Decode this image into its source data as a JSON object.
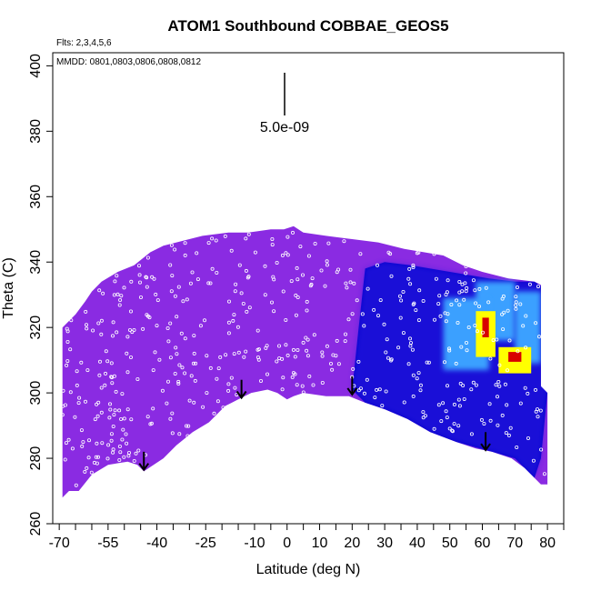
{
  "chart_data": {
    "type": "heatmap",
    "title": "ATOM1 Southbound COBBAE_GEOS5",
    "flights_note": "Flts: 2,3,4,5,6",
    "dates_note": "MMDD: 0801,0803,0806,0808,0812",
    "scale_label": "5.0e-09",
    "xlabel": "Latitude (deg N)",
    "ylabel": "Theta (C)",
    "xlim": [
      -72,
      85
    ],
    "ylim": [
      260,
      404
    ],
    "x_ticks": [
      -70,
      -65,
      -60,
      -55,
      -50,
      -45,
      -40,
      -35,
      -30,
      -25,
      -20,
      -15,
      -10,
      -5,
      0,
      5,
      10,
      15,
      20,
      25,
      30,
      35,
      40,
      45,
      50,
      55,
      60,
      65,
      70,
      75,
      80,
      85
    ],
    "x_tick_labels": [
      "-70",
      "-55",
      "-40",
      "-25",
      "-10",
      "0",
      "10",
      "20",
      "30",
      "40",
      "50",
      "60",
      "70",
      "80"
    ],
    "y_ticks": [
      260,
      280,
      300,
      320,
      340,
      360,
      380,
      400
    ],
    "y_tick_labels": [
      "260",
      "280",
      "300",
      "320",
      "340",
      "360",
      "380",
      "400"
    ],
    "colors": {
      "background_field": "#8a2be2",
      "low": "#0000cd",
      "mid": "#3aa0ff",
      "high": "#ffff00",
      "peak": "#d80000",
      "points": "#ffffff"
    },
    "arrows_lat": [
      -44,
      -14,
      20,
      61
    ],
    "top_boundary": [
      [
        -69,
        320
      ],
      [
        -65,
        324
      ],
      [
        -62,
        328
      ],
      [
        -60,
        331
      ],
      [
        -57,
        334
      ],
      [
        -52,
        337
      ],
      [
        -47,
        339
      ],
      [
        -42,
        343
      ],
      [
        -38,
        345
      ],
      [
        -34,
        346
      ],
      [
        -30,
        347
      ],
      [
        -26,
        348
      ],
      [
        -18,
        349
      ],
      [
        -12,
        349
      ],
      [
        -5,
        350
      ],
      [
        -1,
        350
      ],
      [
        2,
        351
      ],
      [
        5,
        349
      ],
      [
        12,
        348
      ],
      [
        20,
        347
      ],
      [
        28,
        346
      ],
      [
        36,
        344
      ],
      [
        42,
        343
      ],
      [
        48,
        342
      ],
      [
        54,
        339
      ],
      [
        60,
        337
      ],
      [
        68,
        335
      ],
      [
        76,
        334
      ],
      [
        78,
        333
      ]
    ],
    "bottom_boundary": [
      [
        -69,
        268
      ],
      [
        -67,
        270
      ],
      [
        -64,
        270
      ],
      [
        -60,
        275
      ],
      [
        -55,
        278
      ],
      [
        -49,
        279
      ],
      [
        -46,
        278
      ],
      [
        -44,
        276
      ],
      [
        -38,
        280
      ],
      [
        -34,
        284
      ],
      [
        -29,
        288
      ],
      [
        -24,
        291
      ],
      [
        -19,
        296
      ],
      [
        -15,
        298
      ],
      [
        -11,
        300
      ],
      [
        -6,
        301
      ],
      [
        -3,
        300
      ],
      [
        0,
        298
      ],
      [
        2,
        299
      ],
      [
        5,
        300
      ],
      [
        12,
        299
      ],
      [
        19,
        299
      ],
      [
        24,
        297
      ],
      [
        30,
        295
      ],
      [
        37,
        292
      ],
      [
        44,
        288
      ],
      [
        52,
        285
      ],
      [
        58,
        283
      ],
      [
        63,
        282
      ],
      [
        69,
        280
      ],
      [
        73,
        277
      ],
      [
        76,
        274
      ],
      [
        78,
        272
      ],
      [
        80,
        272
      ],
      [
        80,
        300
      ],
      [
        78,
        302
      ]
    ],
    "blue_region": [
      [
        20,
        301
      ],
      [
        22,
        320
      ],
      [
        24,
        338
      ],
      [
        30,
        340
      ],
      [
        38,
        339
      ],
      [
        44,
        338
      ],
      [
        50,
        337
      ],
      [
        56,
        336
      ],
      [
        62,
        335
      ],
      [
        70,
        334
      ],
      [
        76,
        334
      ],
      [
        79,
        332
      ],
      [
        80,
        322
      ],
      [
        80,
        300
      ],
      [
        78,
        280
      ],
      [
        76,
        274
      ],
      [
        70,
        280
      ],
      [
        63,
        282
      ],
      [
        52,
        285
      ],
      [
        44,
        288
      ],
      [
        37,
        292
      ],
      [
        30,
        295
      ],
      [
        24,
        297
      ]
    ],
    "hotspots": [
      {
        "lat": 61,
        "theta": 318,
        "w": 6,
        "h": 14,
        "level": "high"
      },
      {
        "lat": 70,
        "theta": 310,
        "w": 10,
        "h": 8,
        "level": "high"
      },
      {
        "lat": 61,
        "theta": 320,
        "w": 2,
        "h": 6,
        "level": "peak"
      },
      {
        "lat": 70,
        "theta": 311,
        "w": 4,
        "h": 3,
        "level": "peak"
      },
      {
        "lat": 64,
        "theta": 325,
        "w": 12,
        "h": 18,
        "level": "mid"
      },
      {
        "lat": 55,
        "theta": 318,
        "w": 14,
        "h": 22,
        "level": "mid"
      },
      {
        "lat": 74,
        "theta": 320,
        "w": 8,
        "h": 22,
        "level": "mid"
      }
    ]
  }
}
